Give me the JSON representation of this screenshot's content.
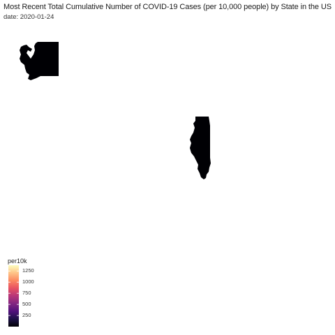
{
  "title": "Most Recent Total Cumulative Number of COVID-19 Cases (per 10,000 people) by State in the US",
  "subtitle": "date: 2020-01-24",
  "states": [
    {
      "name": "Washington",
      "fill": "#000004"
    },
    {
      "name": "Illinois",
      "fill": "#000004"
    }
  ],
  "legend": {
    "title": "per10k",
    "range": [
      0,
      1380
    ],
    "ticks": [
      250,
      500,
      750,
      1000,
      1250
    ],
    "colors": [
      "#000004",
      "#1d1147",
      "#51127c",
      "#832681",
      "#b73779",
      "#e75263",
      "#fc8961",
      "#fec488",
      "#fcfdbf"
    ]
  }
}
